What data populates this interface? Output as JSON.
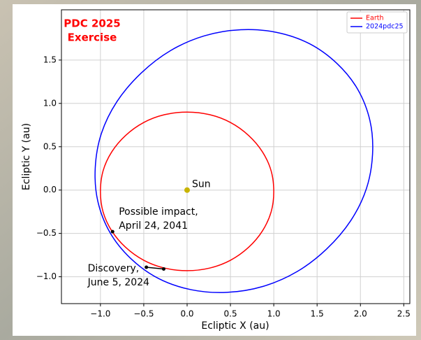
{
  "chart_data": {
    "type": "line",
    "title": [
      "PDC 2025",
      "Exercise"
    ],
    "title_color": "#ff0000",
    "x_label": "Ecliptic X (au)",
    "y_label": "Ecliptic Y (au)",
    "xlim": [
      -1.45,
      2.57
    ],
    "ylim": [
      -1.31,
      2.08
    ],
    "xticks": [
      {
        "value": -1,
        "label": "−1.0"
      },
      {
        "value": -0.5,
        "label": "−0.5"
      },
      {
        "value": 0,
        "label": "0.0"
      },
      0.5,
      {
        "value": 1,
        "label": "1.0"
      },
      1.5,
      {
        "value": 2,
        "label": "2.0"
      },
      2.5
    ],
    "yticks": [
      {
        "value": -1,
        "label": "−1.0"
      },
      {
        "value": -0.5,
        "label": "−0.5"
      },
      {
        "value": 0,
        "label": "0.0"
      },
      0.5,
      {
        "value": 1,
        "label": "1.0"
      },
      1.5
    ],
    "grid": true,
    "legend": "upper right",
    "series": [
      {
        "name": "Earth",
        "color": "#ff0000",
        "x": [
          1.0,
          0.97,
          0.87,
          0.71,
          0.5,
          0.26,
          0,
          -0.26,
          -0.5,
          -0.71,
          -0.87,
          -0.97,
          -1.0,
          -0.97,
          -0.87,
          -0.71,
          -0.5,
          -0.26,
          0,
          0.26,
          0.5,
          0.71,
          0.87,
          0.97,
          1.0
        ],
        "y": [
          -0.02,
          0.22,
          0.44,
          0.63,
          0.78,
          0.87,
          0.9,
          0.87,
          0.78,
          0.63,
          0.44,
          0.22,
          -0.02,
          -0.25,
          -0.47,
          -0.66,
          -0.81,
          -0.9,
          -0.93,
          -0.9,
          -0.81,
          -0.66,
          -0.47,
          -0.25,
          -0.02
        ]
      },
      {
        "name": "2024pdc25",
        "color": "#0000ff",
        "x": [
          2.14,
          2.11,
          1.97,
          1.73,
          1.41,
          1.03,
          0.62,
          0.2,
          -0.19,
          -0.53,
          -0.81,
          -0.99,
          -1.06,
          -1.03,
          -0.89,
          -0.65,
          -0.33,
          0.05,
          0.46,
          0.88,
          1.27,
          1.61,
          1.89,
          2.07,
          2.14
        ],
        "y": [
          0.415,
          0.8,
          1.16,
          1.46,
          1.69,
          1.82,
          1.85,
          1.78,
          1.61,
          1.35,
          1.02,
          0.65,
          0.255,
          -0.13,
          -0.49,
          -0.79,
          -1.02,
          -1.15,
          -1.18,
          -1.11,
          -0.94,
          -0.68,
          -0.35,
          0.02,
          0.415
        ]
      }
    ],
    "annotations": [
      {
        "text": [
          "Sun"
        ],
        "color": "#c8b400",
        "points": [
          {
            "x": 0,
            "y": 0
          }
        ]
      },
      {
        "text": [
          "Possible impact,",
          "April 24, 2041"
        ],
        "color": "#000000",
        "points": [
          {
            "x": -0.86,
            "y": -0.48
          }
        ]
      },
      {
        "text": [
          "Discovery,",
          "June 5, 2024"
        ],
        "color": "#000000",
        "points": [
          {
            "x": -0.47,
            "y": -0.89
          },
          {
            "x": -0.27,
            "y": -0.91
          }
        ]
      }
    ]
  }
}
